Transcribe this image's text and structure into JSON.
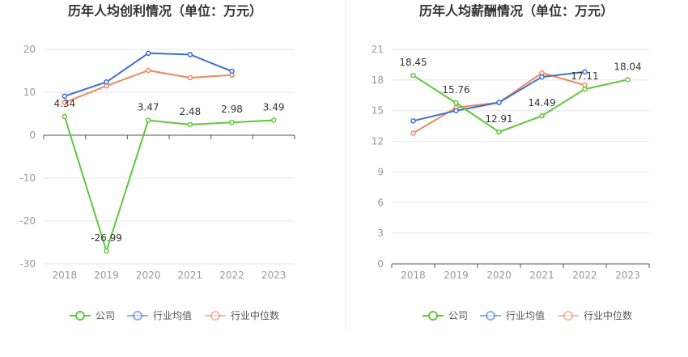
{
  "colors": {
    "company": "#5ec83a",
    "industry_avg": "#3a6fd8",
    "industry_median": "#f0885e",
    "grid": "#e6e6ee",
    "axis": "#555555",
    "tick_text": "#999999",
    "title_text": "#333333",
    "divider": "#eeeeee"
  },
  "chart_data": [
    {
      "type": "line",
      "title": "历年人均创利情况（单位：万元）",
      "categories": [
        "2018",
        "2019",
        "2020",
        "2021",
        "2022",
        "2023"
      ],
      "ylim": [
        -30,
        20
      ],
      "yticks": [
        20,
        10,
        0,
        -10,
        -20,
        -30
      ],
      "ytick_labels": [
        "20",
        "10",
        "0",
        "-10",
        "-20",
        "-30"
      ],
      "series": [
        {
          "key": "company",
          "name": "公司",
          "values": [
            4.34,
            -26.99,
            3.47,
            2.48,
            2.98,
            3.49
          ],
          "labels": [
            "4.34",
            "-26.99",
            "3.47",
            "2.48",
            "2.98",
            "3.49"
          ]
        },
        {
          "key": "industry_avg",
          "name": "行业均值",
          "values": [
            9.1,
            12.4,
            19.1,
            18.8,
            14.9,
            null
          ]
        },
        {
          "key": "industry_median",
          "name": "行业中位数",
          "values": [
            7.6,
            11.5,
            15.1,
            13.4,
            14.0,
            null
          ]
        }
      ],
      "legend_position": "bottom"
    },
    {
      "type": "line",
      "title": "历年人均薪酬情况（单位：万元）",
      "categories": [
        "2018",
        "2019",
        "2020",
        "2021",
        "2022",
        "2023"
      ],
      "ylim": [
        0,
        21
      ],
      "yticks": [
        21,
        18,
        15,
        12,
        9,
        6,
        3,
        0
      ],
      "ytick_labels": [
        "21",
        "18",
        "15",
        "12",
        "9",
        "6",
        "3",
        "0"
      ],
      "series": [
        {
          "key": "company",
          "name": "公司",
          "values": [
            18.45,
            15.76,
            12.91,
            14.49,
            17.11,
            18.04
          ],
          "labels": [
            "18.45",
            "15.76",
            "12.91",
            "14.49",
            "17.11",
            "18.04"
          ]
        },
        {
          "key": "industry_avg",
          "name": "行业均值",
          "values": [
            14.0,
            15.0,
            15.8,
            18.3,
            18.8,
            null
          ]
        },
        {
          "key": "industry_median",
          "name": "行业中位数",
          "values": [
            12.8,
            15.3,
            15.8,
            18.7,
            17.5,
            null
          ]
        }
      ],
      "legend_position": "bottom"
    }
  ]
}
